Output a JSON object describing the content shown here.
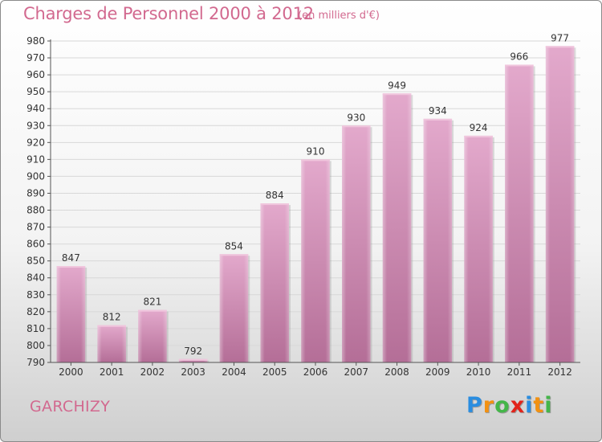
{
  "header": {
    "title": "Charges de Personnel 2000 à 2012",
    "unit": "(en milliers d'€)"
  },
  "footer": {
    "place": "GARCHIZY",
    "logo_letters": [
      "P",
      "r",
      "o",
      "x",
      "i",
      "t",
      "i"
    ],
    "logo_colors": [
      "#2a8de0",
      "#f29111",
      "#44b649",
      "#e2231a",
      "#2a8de0",
      "#f29111",
      "#44b649"
    ]
  },
  "chart_data": {
    "type": "bar",
    "categories": [
      "2000",
      "2001",
      "2002",
      "2003",
      "2004",
      "2005",
      "2006",
      "2007",
      "2008",
      "2009",
      "2010",
      "2011",
      "2012"
    ],
    "values": [
      847,
      812,
      821,
      792,
      854,
      884,
      910,
      930,
      949,
      934,
      924,
      966,
      977
    ],
    "title": "Charges de Personnel 2000 à 2012",
    "xlabel": "",
    "ylabel": "",
    "ylim": [
      790,
      980
    ],
    "ytick_step": 10,
    "grid": true,
    "bar_color": "#d98fb7"
  }
}
